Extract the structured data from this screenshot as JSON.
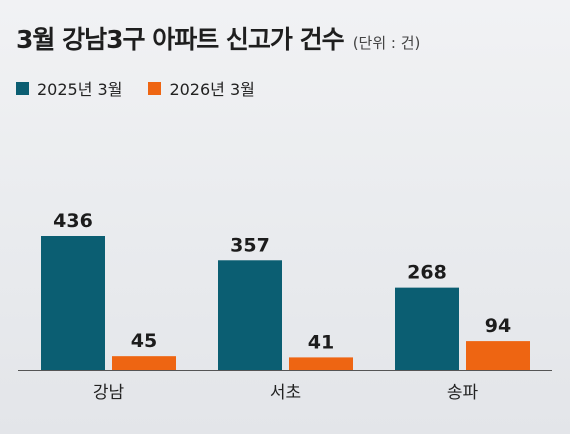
{
  "header": {
    "title": "3월 강남3구 아파트 신고가 건수",
    "unit": "(단위 : 건)"
  },
  "chart_data": {
    "type": "bar",
    "title": "3월 강남3구 아파트 신고가 건수",
    "unit": "(단위 : 건)",
    "categories": [
      "강남",
      "서초",
      "송파"
    ],
    "series": [
      {
        "name": "2025년 3월",
        "values": [
          436,
          357,
          268
        ],
        "color": "#0b5e72"
      },
      {
        "name": "2026년 3월",
        "values": [
          45,
          41,
          94
        ],
        "color": "#ee6512"
      }
    ],
    "ylim": [
      0,
      436
    ],
    "grid": false,
    "legend_position": "top-left"
  },
  "colors": {
    "series_2025": "#0b5e72",
    "series_2026": "#ee6512",
    "axis": "#555555"
  }
}
